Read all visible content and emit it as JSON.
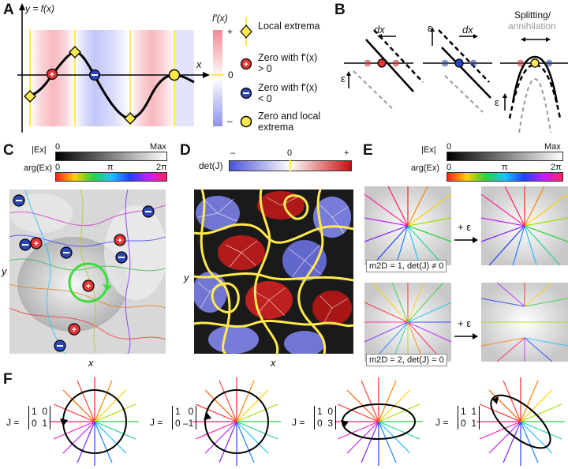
{
  "panel_labels": {
    "a": "A",
    "b": "B",
    "c": "C",
    "d": "D",
    "e": "E",
    "f": "F"
  },
  "panelA": {
    "y_axis": "y = f(x)",
    "x_axis": "x",
    "cbar_title": "f'(x)",
    "cbar_plus": "+",
    "cbar_zero": "0",
    "cbar_minus": "–",
    "legend": [
      {
        "icon": "yellow-diamond",
        "text": "Local extrema"
      },
      {
        "icon": "red-plus-circle",
        "text": "Zero with f'(x) > 0"
      },
      {
        "icon": "blue-minus-circle",
        "text": "Zero with f'(x) < 0"
      },
      {
        "icon": "yellow-circle",
        "text": "Zero and local extrema"
      }
    ]
  },
  "panelB": {
    "dx1": "dx",
    "dx2": "dx",
    "eps1": "ε",
    "eps2": "ε",
    "eps3": "ε",
    "splitting": "Splitting/",
    "annihilation": "annihilation"
  },
  "panelC": {
    "mag_label": "|Ex|",
    "mag_min": "0",
    "mag_max": "Max",
    "arg_label": "arg(Ex)",
    "arg_0": "0",
    "arg_pi": "π",
    "arg_2pi": "2π",
    "y": "y",
    "x": "x"
  },
  "panelD": {
    "label": "det(J)",
    "minus": "–",
    "zero": "0",
    "plus": "+",
    "y": "y",
    "x": "x"
  },
  "panelE": {
    "mag_label": "|Ex|",
    "mag_min": "0",
    "mag_max": "Max",
    "arg_label": "arg(Ex)",
    "arg_0": "0",
    "arg_pi": "π",
    "arg_2pi": "2π",
    "plus_eps_1": "+ ε",
    "plus_eps_2": "+ ε",
    "caption1": "m2D = 1, det(J) ≠ 0",
    "caption2": "m2D = 2, det(J) = 0"
  },
  "panelF": {
    "matrices": [
      {
        "prefix": "J =",
        "r1": "1  0",
        "r2": "0  1"
      },
      {
        "prefix": "J =",
        "r1": "1   0",
        "r2": "0 –1"
      },
      {
        "prefix": "J =",
        "r1": "1  0",
        "r2": "0  3"
      },
      {
        "prefix": "J =",
        "r1": "1  1",
        "r2": "0  1"
      }
    ]
  }
}
